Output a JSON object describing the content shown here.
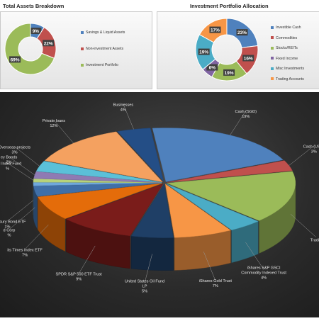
{
  "titles": {
    "total_assets": "Total Assets Breakdown",
    "portfolio": "Investment Portfolio Allocation"
  },
  "chart_data": [
    {
      "type": "pie",
      "style": "doughnut",
      "title": "Total Assets Breakdown",
      "legend_position": "right",
      "series": [
        {
          "name": "Savings & Liquid Assets",
          "value": 9,
          "label": "9%",
          "color": "#4f81bd"
        },
        {
          "name": "Non-investment Assets",
          "value": 22,
          "label": "22%",
          "color": "#c0504d"
        },
        {
          "name": "Investment Portfolio",
          "value": 69,
          "label": "69%",
          "color": "#9bbb59"
        }
      ]
    },
    {
      "type": "pie",
      "style": "doughnut",
      "title": "Investment Portfolio Allocation",
      "legend_position": "right",
      "series": [
        {
          "name": "Investible Cash",
          "value": 23,
          "label": "23%",
          "color": "#4f81bd"
        },
        {
          "name": "Commodities",
          "value": 16,
          "label": "16%",
          "color": "#c0504d"
        },
        {
          "name": "Stocks/REITs",
          "value": 19,
          "label": "19%",
          "color": "#9bbb59"
        },
        {
          "name": "Fixed Income",
          "value": 6,
          "label": "6%",
          "color": "#8064a2"
        },
        {
          "name": "Misc Investments",
          "value": 19,
          "label": "19%",
          "color": "#4bacc6"
        },
        {
          "name": "Trading Accounts",
          "value": 17,
          "label": "17%",
          "color": "#f79646"
        }
      ]
    },
    {
      "type": "pie",
      "style": "3d-exploded",
      "background": "#2b2b2b",
      "series": [
        {
          "name": "Cash (SGD)",
          "value": 19,
          "label": "Cash (SGD)",
          "pct": "19%",
          "color": "#4f81bd"
        },
        {
          "name": "Cash (USD)",
          "value": 3,
          "label": "Cash (USD)",
          "pct": "3%",
          "color": "#c0504d"
        },
        {
          "name": "Trading",
          "value": 15,
          "label": "Tradin",
          "pct": "",
          "color": "#9bbb59"
        },
        {
          "name": "iShares S&P GSCI Commodity Indexed Trust",
          "value": 4,
          "label": "iShares S&P GSCI Commodity Indexed Trust",
          "pct": "4%",
          "color": "#4bacc6"
        },
        {
          "name": "iShares Gold Trust",
          "value": 7,
          "label": "iShares Gold Trust",
          "pct": "7%",
          "color": "#f79646"
        },
        {
          "name": "United States Oil Fund LP",
          "value": 5,
          "label": "United States Oil Fund LP",
          "pct": "5%",
          "color": "#1f3f66"
        },
        {
          "name": "SPDR S&P 500 ETF Trust",
          "value": 9,
          "label": "SPDR S&P 500 ETF Trust",
          "pct": "9%",
          "color": "#7a1c1a"
        },
        {
          "name": "Straits Times Index ETF",
          "value": 7,
          "label": "its Times Index ETF",
          "pct": "7%",
          "color": "#e46c0a"
        },
        {
          "name": "Bond Corp",
          "value": 3,
          "label": "d Corp",
          "pct": "%",
          "color": "#3f6fa8"
        },
        {
          "name": "Treasury Bond ETF",
          "value": 1,
          "label": "r Treasury Bond ETF",
          "pct": "1%",
          "color": "#6fa8dc"
        },
        {
          "name": "Bond Index Fund",
          "value": 1,
          "label": "ond Index Fund",
          "pct": "%",
          "color": "#b7d37a"
        },
        {
          "name": "Savings Bonds",
          "value": 2,
          "label": "ey Bonds",
          "pct": "2%",
          "color": "#8f7bb3"
        },
        {
          "name": "Overseas projects",
          "value": 3,
          "label": "Overseas projects",
          "pct": "3%",
          "color": "#5bc0d8"
        },
        {
          "name": "Private loans",
          "value": 12,
          "label": "Private loans",
          "pct": "12%",
          "color": "#f4a160"
        },
        {
          "name": "Businesses",
          "value": 4,
          "label": "Businesses",
          "pct": "4%",
          "color": "#244e86"
        }
      ]
    }
  ]
}
